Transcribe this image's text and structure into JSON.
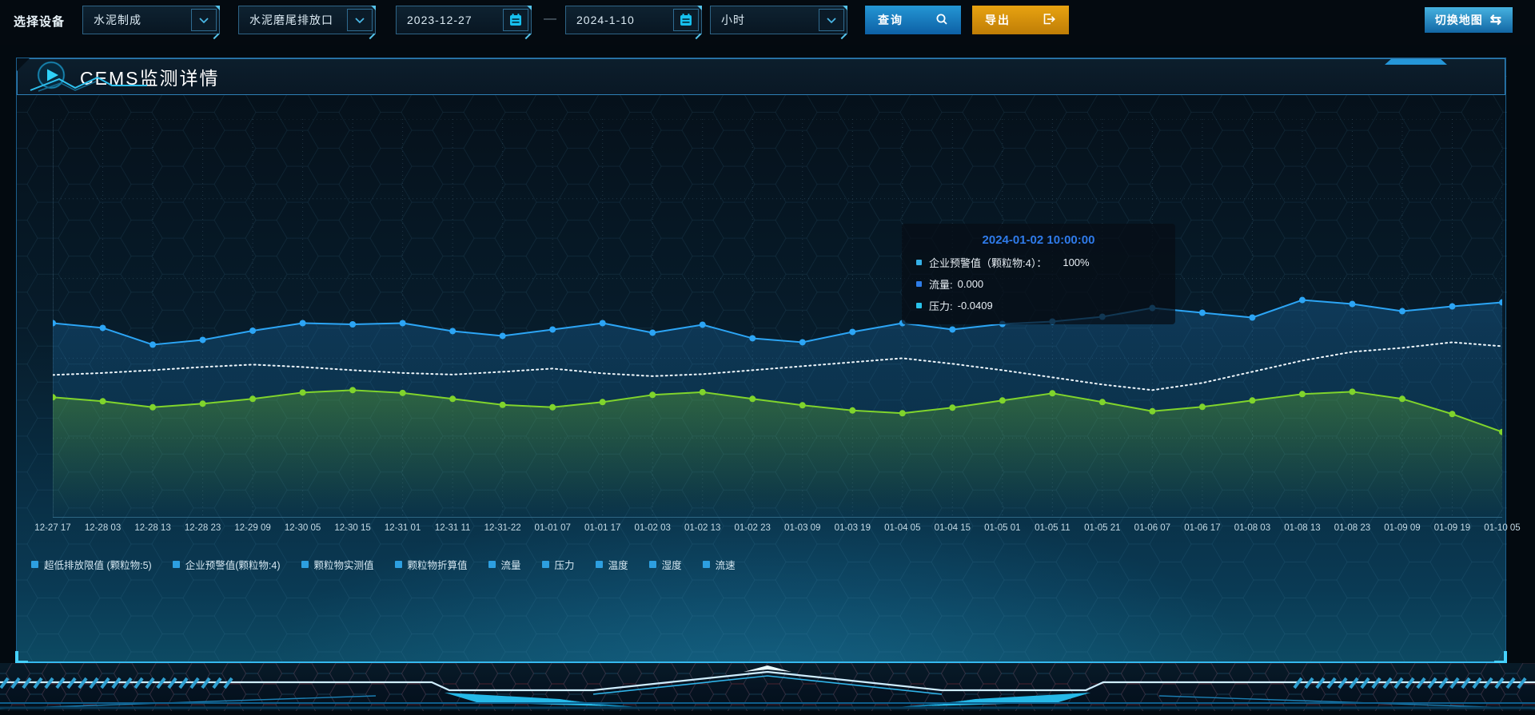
{
  "toolbar": {
    "device_label": "选择设备",
    "selects": [
      {
        "value": "水泥制成"
      },
      {
        "value": "水泥磨尾排放口"
      }
    ],
    "date_range": {
      "start": "2023-12-27",
      "separator": "—",
      "end": "2024-1-10"
    },
    "interval_select": {
      "value": "小时"
    },
    "query_button": "查询",
    "export_button": "导出",
    "switch_map_button": "切换地图",
    "swap_icon_glyph": "⇆"
  },
  "panel": {
    "title": "CEMS监测详情"
  },
  "tooltip": {
    "title": "2024-01-02 10:00:00",
    "rows": [
      {
        "label": "企业预警值（颗粒物:4）：",
        "value": "100%",
        "marker_color": "#35b0e6"
      },
      {
        "label": "流量:",
        "value": "0.000",
        "marker_color": "#2e7ce8"
      },
      {
        "label": "压力:",
        "value": "-0.0409",
        "marker_color": "#29c2ea"
      }
    ]
  },
  "chart_data": {
    "type": "line",
    "title": "",
    "xlabel": "",
    "ylabel": "",
    "y_axis_labels_visible": false,
    "grid": true,
    "legend_position": "bottom",
    "legend_marker_color": "#2d9fe0",
    "legend": [
      "超低排放限值 (颗粒物:5)",
      "企业预警值(颗粒物:4)",
      "颗粒物实测值",
      "颗粒物折算值",
      "流量",
      "压力",
      "温度",
      "湿度",
      "流速"
    ],
    "x_labels": [
      "12-27 17",
      "12-28 03",
      "12-28 13",
      "12-28 23",
      "12-29 09",
      "12-30 05",
      "12-30 15",
      "12-31 01",
      "12-31 11",
      "12-31-22",
      "01-01 07",
      "01-01 17",
      "01-02 03",
      "01-02 13",
      "01-02 23",
      "01-03 09",
      "01-03 19",
      "01-04 05",
      "01-04 15",
      "01-05 01",
      "01-05 11",
      "01-05 21",
      "01-06 07",
      "01-06 17",
      "01-08 03",
      "01-08 13",
      "01-08 23",
      "01-09 09",
      "01-09 19",
      "01-10 05"
    ],
    "value_units": "percent of plot height (no numeric y-axis shown on screen)",
    "ylim": [
      0,
      100
    ],
    "series": [
      {
        "name": "企业预警值(颗粒物:4)",
        "color": "#2ca5f5",
        "style": "solid",
        "points": true,
        "area": true,
        "area_color": "rgba(32,130,200,0.28)",
        "values": [
          48.8,
          47.6,
          43.4,
          44.6,
          46.9,
          48.8,
          48.5,
          48.8,
          46.8,
          45.6,
          47.2,
          48.8,
          46.4,
          48.4,
          45.0,
          44.0,
          46.6,
          48.8,
          47.2,
          48.6,
          49.2,
          50.4,
          52.6,
          51.4,
          50.2,
          54.6,
          53.6,
          51.8,
          53.0,
          54.0
        ]
      },
      {
        "name": "压力",
        "color": "#eef6fb",
        "style": "dotted",
        "points": false,
        "area": false,
        "area_color": "none",
        "values": [
          35.8,
          36.3,
          37.0,
          37.8,
          38.4,
          37.8,
          37.0,
          36.3,
          35.9,
          36.6,
          37.4,
          36.2,
          35.5,
          36.0,
          37.0,
          38.0,
          39.0,
          40.0,
          38.6,
          37.0,
          35.2,
          33.4,
          32.0,
          33.8,
          36.6,
          39.4,
          41.6,
          42.6,
          44.0,
          43.0
        ]
      },
      {
        "name": "流量",
        "color": "#80d42c",
        "style": "solid",
        "points": true,
        "area": true,
        "area_color": "rgba(116,200,40,0.30)",
        "values": [
          30.2,
          29.2,
          27.7,
          28.6,
          29.8,
          31.4,
          32.0,
          31.3,
          29.8,
          28.3,
          27.7,
          29.0,
          30.8,
          31.5,
          29.8,
          28.2,
          26.9,
          26.2,
          27.6,
          29.4,
          31.2,
          29.0,
          26.7,
          27.8,
          29.4,
          31.0,
          31.6,
          29.8,
          26.0,
          21.5
        ]
      }
    ],
    "hovered_point": "2024-01-02 10:00:00"
  },
  "theme": {
    "accent_cyan": "#35c8f5",
    "grid_color": "rgba(130,180,210,0.22)",
    "axis_color": "#3b7997",
    "xlabel_color": "#c6dbe6",
    "query_blue": "#1f8dcb",
    "export_orange": "#e6a011"
  }
}
